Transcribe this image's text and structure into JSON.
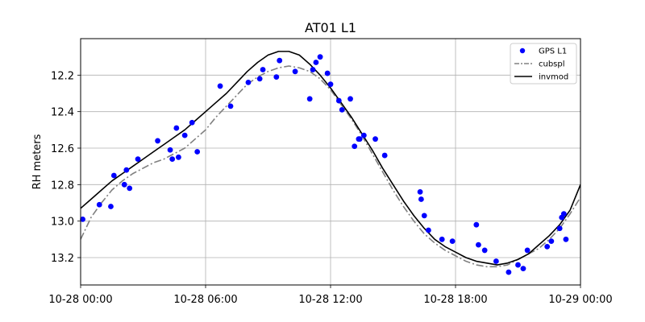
{
  "chart_data": {
    "type": "scatter",
    "title": "AT01 L1",
    "ylabel": "RH meters",
    "xlabel": "",
    "xlim": [
      "2020-10-28 00:00",
      "2020-10-29 00:00"
    ],
    "ylim": [
      13.35,
      12.0
    ],
    "y_inverted": true,
    "grid": true,
    "legend_position": "upper-right",
    "x_ticks": [
      0,
      6,
      12,
      18,
      24
    ],
    "x_tick_labels": [
      "10-28 00:00",
      "10-28 06:00",
      "10-28 12:00",
      "10-28 18:00",
      "10-29 00:00"
    ],
    "y_ticks": [
      12.2,
      12.4,
      12.6,
      12.8,
      13.0,
      13.2
    ],
    "y_tick_labels": [
      "12.2",
      "12.4",
      "12.6",
      "12.8",
      "13.0",
      "13.2"
    ],
    "series": [
      {
        "name": "GPS L1",
        "kind": "points",
        "color": "#0000ff",
        "x": [
          0.1,
          0.9,
          1.45,
          1.6,
          2.1,
          2.2,
          2.35,
          2.75,
          3.7,
          4.3,
          4.4,
          4.6,
          4.7,
          5.0,
          5.35,
          5.6,
          6.7,
          7.2,
          8.05,
          8.6,
          8.75,
          9.4,
          9.55,
          10.3,
          11.0,
          11.15,
          11.3,
          11.5,
          11.85,
          12.0,
          12.4,
          12.55,
          12.95,
          13.15,
          13.35,
          13.4,
          13.6,
          14.15,
          14.6,
          16.3,
          16.35,
          16.5,
          16.7,
          17.35,
          17.85,
          19.0,
          19.1,
          19.4,
          19.95,
          20.55,
          21.0,
          21.25,
          21.45,
          22.4,
          22.6,
          23.0,
          23.1,
          23.2,
          23.3
        ],
        "y": [
          12.99,
          12.91,
          12.92,
          12.75,
          12.8,
          12.72,
          12.82,
          12.66,
          12.56,
          12.61,
          12.66,
          12.49,
          12.65,
          12.53,
          12.46,
          12.62,
          12.26,
          12.37,
          12.24,
          12.22,
          12.17,
          12.21,
          12.12,
          12.18,
          12.33,
          12.17,
          12.13,
          12.1,
          12.19,
          12.25,
          12.34,
          12.39,
          12.33,
          12.59,
          12.55,
          12.55,
          12.53,
          12.55,
          12.64,
          12.84,
          12.88,
          12.97,
          13.05,
          13.1,
          13.11,
          13.02,
          13.13,
          13.16,
          13.22,
          13.28,
          13.24,
          13.26,
          13.16,
          13.14,
          13.11,
          13.04,
          12.98,
          12.96,
          13.1
        ]
      },
      {
        "name": "cubspl",
        "kind": "line",
        "style": "dashdot",
        "color": "#808080",
        "x": [
          0,
          0.5,
          1.0,
          1.5,
          2.0,
          2.5,
          3.0,
          3.5,
          4.0,
          4.5,
          5.0,
          5.5,
          6.0,
          6.5,
          7.0,
          7.5,
          8.0,
          8.5,
          9.0,
          9.5,
          10.0,
          10.5,
          11.0,
          11.5,
          12.0,
          12.5,
          13.0,
          13.5,
          14.0,
          14.5,
          15.0,
          15.5,
          16.0,
          16.5,
          17.0,
          17.5,
          18.0,
          18.5,
          19.0,
          19.5,
          20.0,
          20.5,
          21.0,
          21.5,
          22.0,
          22.5,
          23.0,
          23.5,
          24.0
        ],
        "y": [
          13.1,
          12.98,
          12.9,
          12.83,
          12.78,
          12.74,
          12.71,
          12.68,
          12.66,
          12.63,
          12.6,
          12.55,
          12.5,
          12.43,
          12.37,
          12.31,
          12.25,
          12.21,
          12.18,
          12.16,
          12.15,
          12.16,
          12.18,
          12.22,
          12.28,
          12.36,
          12.44,
          12.53,
          12.63,
          12.73,
          12.83,
          12.92,
          13.0,
          13.07,
          13.12,
          13.16,
          13.19,
          13.22,
          13.24,
          13.25,
          13.25,
          13.24,
          13.21,
          13.18,
          13.15,
          13.1,
          13.04,
          12.96,
          12.87
        ]
      },
      {
        "name": "invmod",
        "kind": "line",
        "style": "solid",
        "color": "#000000",
        "x": [
          0,
          0.5,
          1.0,
          1.5,
          2.0,
          2.5,
          3.0,
          3.5,
          4.0,
          4.5,
          5.0,
          5.5,
          6.0,
          6.5,
          7.0,
          7.5,
          8.0,
          8.5,
          9.0,
          9.5,
          10.0,
          10.5,
          11.0,
          11.5,
          12.0,
          12.5,
          13.0,
          13.5,
          14.0,
          14.5,
          15.0,
          15.5,
          16.0,
          16.5,
          17.0,
          17.5,
          18.0,
          18.5,
          19.0,
          19.5,
          20.0,
          20.5,
          21.0,
          21.5,
          22.0,
          22.5,
          23.0,
          23.5,
          24.0
        ],
        "y": [
          12.93,
          12.88,
          12.83,
          12.78,
          12.74,
          12.7,
          12.66,
          12.62,
          12.58,
          12.54,
          12.5,
          12.45,
          12.4,
          12.35,
          12.3,
          12.24,
          12.18,
          12.13,
          12.09,
          12.07,
          12.07,
          12.09,
          12.14,
          12.2,
          12.27,
          12.35,
          12.43,
          12.52,
          12.61,
          12.71,
          12.8,
          12.89,
          12.97,
          13.04,
          13.1,
          13.14,
          13.17,
          13.2,
          13.22,
          13.23,
          13.24,
          13.23,
          13.21,
          13.18,
          13.13,
          13.08,
          13.02,
          12.94,
          12.8
        ]
      }
    ]
  }
}
